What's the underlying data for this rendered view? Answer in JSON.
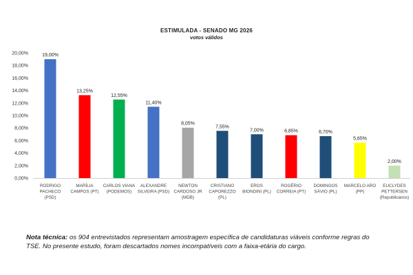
{
  "chart_data": {
    "type": "bar",
    "title": "ESTIMULADA - SENADO MG 2026",
    "subtitle": "votos válidos",
    "ylim": [
      0,
      20
    ],
    "yticks": [
      "0,00%",
      "2,00%",
      "4,00%",
      "6,00%",
      "8,00%",
      "10,00%",
      "12,00%",
      "14,00%",
      "16,00%",
      "18,00%",
      "20,00%"
    ],
    "categories": [
      [
        "RODRIGO",
        "PACHECO",
        "(PSD)"
      ],
      [
        "MARÍLIA",
        "CAMPOS (PT)"
      ],
      [
        "CARLOS VIANA",
        "(PODEMOS)"
      ],
      [
        "ALEXANDRE",
        "SILVEIRA (PSD)"
      ],
      [
        "NEWTON",
        "CARDOSO JR",
        "(MDB)"
      ],
      [
        "CRISTIANO",
        "CAPOREZZO",
        "(PL)"
      ],
      [
        "EROS",
        "BIONDINI (PL)"
      ],
      [
        "ROGÉRIO",
        "CORREIA (PT)"
      ],
      [
        "DOMINGOS",
        "SÁVIO (PL)"
      ],
      [
        "MARCELO ARO",
        "(PP)"
      ],
      [
        "EUCLYDES",
        "PETTERSEN",
        "(Republicanos)"
      ]
    ],
    "values": [
      19.0,
      13.25,
      12.55,
      11.4,
      8.05,
      7.55,
      7.0,
      6.85,
      6.7,
      5.65,
      2.0
    ],
    "value_labels": [
      "19,00%",
      "13,25%",
      "12,55%",
      "11,40%",
      "8,05%",
      "7,55%",
      "7,00%",
      "6,85%",
      "6,70%",
      "5,65%",
      "2,00%"
    ],
    "colors": [
      "#4472c4",
      "#ff0000",
      "#00b050",
      "#4472c4",
      "#a6a6a6",
      "#1f4e79",
      "#1f4e79",
      "#ff0000",
      "#1f4e79",
      "#ffff00",
      "#c5e0b4"
    ],
    "grid": false,
    "legend": "none"
  },
  "note": {
    "label": "Nota técnica:",
    "text": " os 904 entrevistados representam amostragem específica de candidaturas viáveis conforme regras do TSE. No presente estudo, foram descartados nomes incompatíveis com a faixa-etária do cargo."
  }
}
